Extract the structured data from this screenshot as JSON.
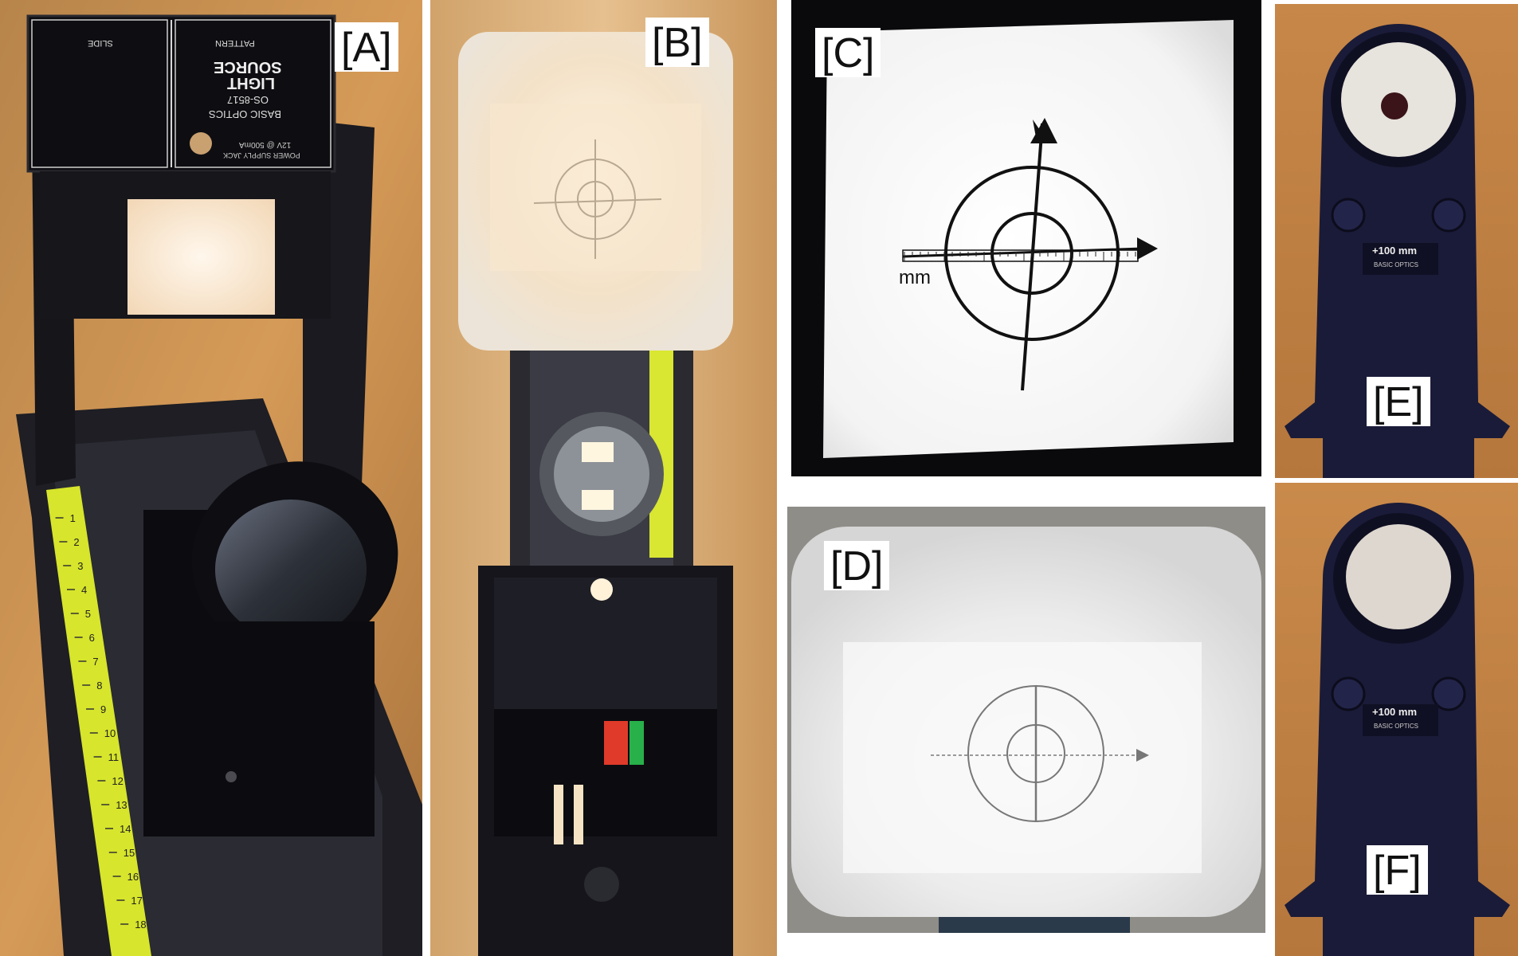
{
  "panels": {
    "a": {
      "label": "[A]",
      "light_source": {
        "slide_label": "SLIDE",
        "pattern_label": "PATTERN",
        "title_line1": "LIGHT",
        "title_line2": "SOURCE",
        "series": "BASIC OPTICS",
        "model": "OS-8517",
        "power_note": "12V @ 500mA",
        "jack_note": "POWER SUPPLY JACK"
      },
      "ruler_ticks": [
        "1",
        "2",
        "3",
        "4",
        "5",
        "6",
        "7",
        "8",
        "9",
        "10",
        "11",
        "12",
        "13",
        "14",
        "15",
        "16",
        "17",
        "18"
      ]
    },
    "b": {
      "label": "[B]"
    },
    "c": {
      "label": "[C]",
      "scale_unit": "mm"
    },
    "d": {
      "label": "[D]"
    },
    "e": {
      "label": "[E]",
      "lens_power": "+100 mm",
      "series": "BASIC OPTICS"
    },
    "f": {
      "label": "[F]",
      "lens_power": "+100 mm",
      "series": "BASIC OPTICS"
    }
  },
  "colors": {
    "wood": "#c98f4c",
    "rail": "#1c1c22",
    "ruler": "#d9e830",
    "screen": "#efefef",
    "lens_holder": "#1a1a3a"
  }
}
